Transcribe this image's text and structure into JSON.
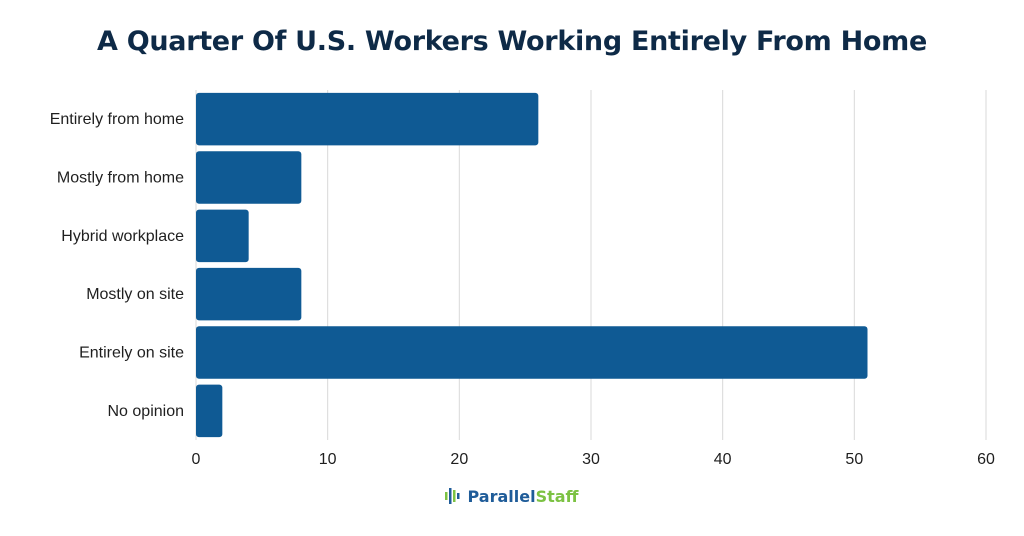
{
  "chart_data": {
    "type": "bar",
    "orientation": "horizontal",
    "title": "A Quarter Of U.S. Workers Working Entirely From Home",
    "categories": [
      "Entirely from home",
      "Mostly from home",
      "Hybrid workplace",
      "Mostly on site",
      "Entirely on site",
      "No opinion"
    ],
    "values": [
      26,
      8,
      4,
      8,
      51,
      2
    ],
    "xlim": [
      0,
      60
    ],
    "xticks": [
      0,
      10,
      20,
      30,
      40,
      50,
      60
    ],
    "grid": true,
    "bar_color": "#0f5a94",
    "grid_color": "#d9d9d9"
  },
  "logo": {
    "part1": "Parallel",
    "part2": "Staff"
  }
}
